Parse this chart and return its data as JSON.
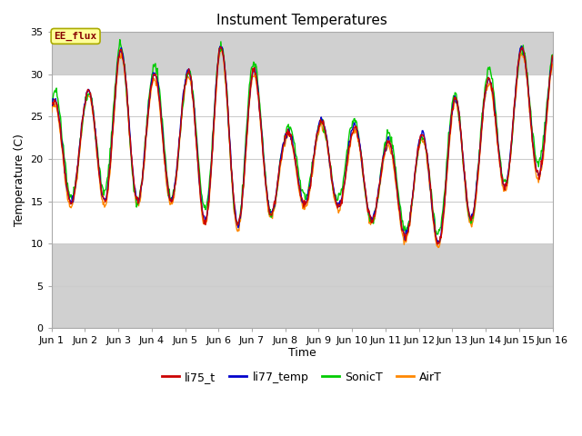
{
  "title": "Instument Temperatures",
  "ylabel": "Temperature (C)",
  "xlabel": "Time",
  "ylim": [
    0,
    35
  ],
  "xlim": [
    0,
    15
  ],
  "yticks": [
    0,
    5,
    10,
    15,
    20,
    25,
    30,
    35
  ],
  "xtick_positions": [
    0,
    1,
    2,
    3,
    4,
    5,
    6,
    7,
    8,
    9,
    10,
    11,
    12,
    13,
    14,
    15
  ],
  "xtick_labels": [
    "Jun 1",
    "Jun 2",
    "Jun 3",
    "Jun 4",
    "Jun 5",
    "Jun 6",
    "Jun 7",
    "Jun 8",
    "Jun 9",
    "Jun 10",
    "Jun 11",
    "Jun 12",
    "Jun 13",
    "Jun 14",
    "Jun 15",
    "Jun 16"
  ],
  "annotation_text": "EE_flux",
  "line_colors": {
    "li75_t": "#cc0000",
    "li77_temp": "#0000cc",
    "SonicT": "#00cc00",
    "AirT": "#ff8800"
  },
  "line_width": 1.0,
  "band_ymin": 10,
  "band_ymax": 30,
  "band_color": "#e0e0e0",
  "outer_band_color": "#d0d0d0",
  "plot_bg_color": "#ffffff",
  "fig_bg_color": "#ffffff",
  "grid_color": "#cccccc",
  "title_fontsize": 11,
  "axis_fontsize": 9,
  "tick_fontsize": 8
}
